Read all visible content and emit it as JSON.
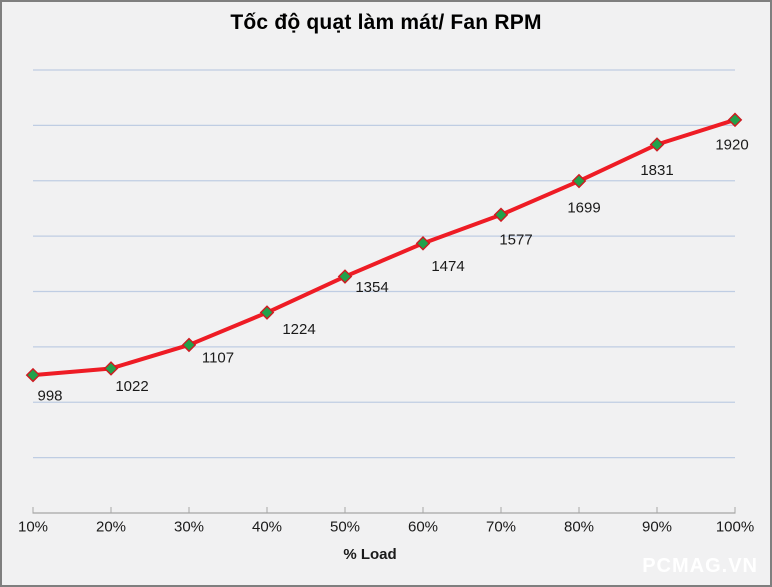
{
  "watermark": "PCMAG.VN",
  "chart_data": {
    "type": "line",
    "title": "Tốc độ quạt làm mát/ Fan RPM",
    "xlabel": "% Load",
    "ylabel": "",
    "categories": [
      "10%",
      "20%",
      "30%",
      "40%",
      "50%",
      "60%",
      "70%",
      "80%",
      "90%",
      "100%"
    ],
    "series": [
      {
        "name": "Fan RPM",
        "values": [
          998,
          1022,
          1107,
          1224,
          1354,
          1474,
          1577,
          1699,
          1831,
          1920
        ]
      }
    ],
    "data_labels": [
      998,
      1022,
      1107,
      1224,
      1354,
      1474,
      1577,
      1699,
      1831,
      1920
    ],
    "ylim": [
      500,
      2100
    ],
    "grid_step": 200,
    "grid": "horizontal",
    "legend_position": "none",
    "marker_shape": "diamond",
    "colors": {
      "line": "#ee1c25",
      "marker_fill": "#21a14b",
      "marker_stroke": "#cf1a21",
      "gridline": "#bfcde3",
      "axis": "#a6a6a6",
      "background": "#f1f1f2",
      "border": "#7f7f7f",
      "text": "#1a1a1a",
      "title_text": "#000000",
      "watermark_text": "#ffffff"
    }
  }
}
